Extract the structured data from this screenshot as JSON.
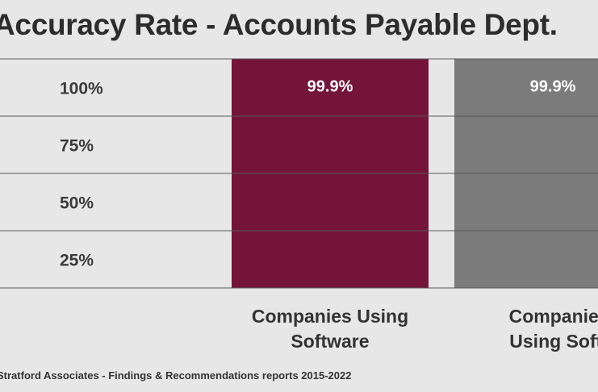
{
  "chart_data": {
    "type": "bar",
    "title": "Accuracy Rate - Accounts Payable Dept.",
    "categories": [
      [
        "Companies Using",
        "Software"
      ],
      [
        "Companies Not",
        "Using Software"
      ]
    ],
    "category_underline": [
      null,
      "Not"
    ],
    "values": [
      99.9,
      99.9
    ],
    "data_labels": [
      "99.9%",
      "99.9%"
    ],
    "y_ticks": [
      {
        "value": 100,
        "label": "100%"
      },
      {
        "value": 75,
        "label": "75%"
      },
      {
        "value": 50,
        "label": "50%"
      },
      {
        "value": 25,
        "label": "25%"
      }
    ],
    "ylim": [
      0,
      100
    ],
    "xlabel": "",
    "ylabel": "",
    "grid": true,
    "legend": "none",
    "colors": {
      "bars": [
        "#731438",
        "#7b7b7b"
      ],
      "grid": "#5a5a5a",
      "background": "#e7e7e7"
    }
  },
  "source": "Stratford Associates - Findings & Recommendations reports 2015-2022"
}
